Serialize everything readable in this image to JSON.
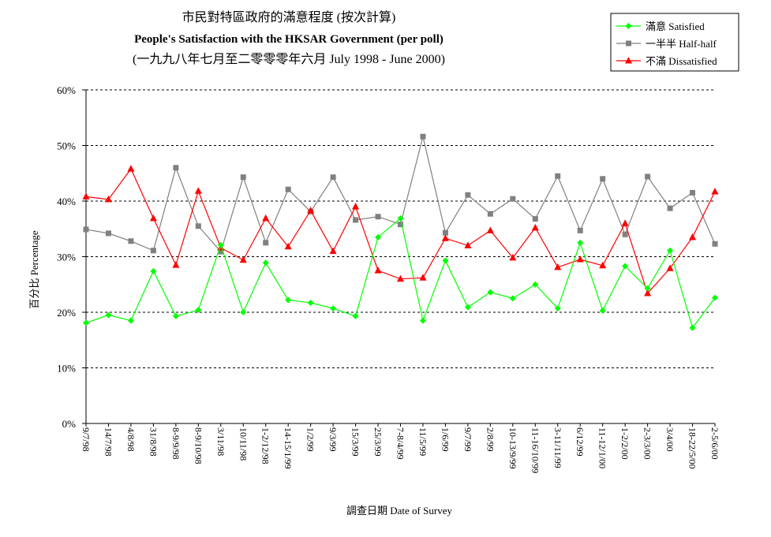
{
  "chart_data": {
    "type": "line",
    "title_zh": "市民對特區政府的滿意程度 (按次計算)",
    "title_en": "People's Satisfaction with the HKSAR Government  (per poll)",
    "subtitle": "(一九九八年七月至二零零零年六月 July 1998 - June 2000)",
    "xlabel": "調查日期 Date of Survey",
    "ylabel": "百分比 Percentage",
    "ylim": [
      0,
      60
    ],
    "yticks": [
      "0%",
      "10%",
      "20%",
      "30%",
      "40%",
      "50%",
      "60%"
    ],
    "grid": "horizontal dashed",
    "legend_position": "top-right",
    "categories": [
      "9/7/98",
      "14/7/98",
      "4/8/98",
      "31/8/98",
      "8-9/9/98",
      "8-9/10/98",
      "3/11/98",
      "10/11/98",
      "1-2/12/98",
      "14-15/1/99",
      "1/2/99",
      "9/3/99",
      "15/3/99",
      "25/3/99",
      "7-8/4/99",
      "11/5/99",
      "1/6/99",
      "9/7/99",
      "2/8/99",
      "10-13/9/99",
      "11-16/10/99",
      "3-11/11/99",
      "6/12/99",
      "11-12/1/00",
      "1-2/2/00",
      "2-3/3/00",
      "3/4/00",
      "18-22/5/00",
      "2-5/6/00"
    ],
    "series": [
      {
        "name": "滿意 Satisfied",
        "color": "#00ff00",
        "marker": "diamond",
        "values": [
          18.1,
          19.5,
          18.5,
          27.4,
          19.3,
          20.4,
          32.1,
          20.0,
          28.9,
          22.2,
          21.7,
          20.7,
          19.3,
          33.5,
          36.9,
          18.5,
          29.3,
          20.9,
          23.6,
          22.5,
          25.0,
          20.7,
          32.5,
          20.3,
          28.3,
          24.3,
          31.1,
          17.2,
          22.6
        ]
      },
      {
        "name": "一半半 Half-half",
        "color": "#808080",
        "marker": "square",
        "values": [
          34.9,
          34.2,
          32.8,
          31.1,
          46.0,
          35.5,
          30.9,
          44.3,
          32.5,
          42.1,
          38.1,
          44.3,
          36.6,
          37.2,
          35.8,
          51.6,
          34.3,
          41.1,
          37.7,
          40.4,
          36.8,
          44.5,
          34.7,
          44.0,
          34.0,
          44.4,
          38.7,
          41.5,
          32.3
        ]
      },
      {
        "name": "不滿 Dissatisfied",
        "color": "#ff0000",
        "marker": "triangle",
        "values": [
          40.8,
          40.3,
          45.8,
          36.9,
          28.5,
          41.8,
          31.6,
          29.4,
          36.9,
          31.8,
          38.3,
          31.0,
          39.0,
          27.5,
          26.0,
          26.2,
          33.3,
          32.0,
          34.7,
          29.8,
          35.2,
          28.1,
          29.5,
          28.4,
          36.0,
          23.4,
          27.9,
          33.5,
          41.7
        ]
      }
    ]
  }
}
